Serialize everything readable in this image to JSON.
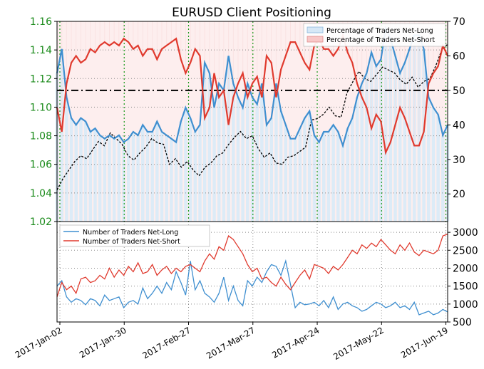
{
  "chart_data": [
    {
      "type": "line",
      "title": "EURUSD Client Positioning",
      "ylim_left": [
        1.02,
        1.16
      ],
      "left_ticks": [
        "1.02",
        "1.04",
        "1.06",
        "1.08",
        "1.10",
        "1.12",
        "1.14",
        "1.16"
      ],
      "ylim_right": [
        12,
        70
      ],
      "right_ticks": [
        "20",
        "30",
        "40",
        "50",
        "60",
        "70"
      ],
      "reference_line": 50,
      "legend_placement": "top-right",
      "grid": true,
      "series": [
        {
          "name": "Percentage of Traders Net-Long",
          "color": "#3f8fd0",
          "values": [
            55,
            62,
            48,
            42,
            40,
            42,
            41,
            38,
            39,
            37,
            36,
            37,
            36,
            37,
            35,
            36,
            38,
            37,
            40,
            38,
            38,
            41,
            38,
            37,
            36,
            35,
            41,
            45,
            42,
            38,
            40,
            58,
            55,
            45,
            52,
            50,
            60,
            52,
            48,
            45,
            52,
            48,
            46,
            52,
            40,
            42,
            52,
            44,
            40,
            36,
            36,
            39,
            42,
            44,
            37,
            35,
            38,
            38,
            40,
            38,
            34,
            39,
            42,
            48,
            52,
            55,
            61,
            57,
            59,
            68,
            65,
            60,
            55,
            58,
            62,
            66,
            66,
            62,
            48,
            45,
            43,
            37,
            40
          ]
        },
        {
          "name": "Percentage of Traders Net-Short",
          "color": "#e03a2e",
          "values": [
            45,
            38,
            52,
            58,
            60,
            58,
            59,
            62,
            61,
            63,
            64,
            63,
            64,
            63,
            65,
            64,
            62,
            63,
            60,
            62,
            62,
            59,
            62,
            63,
            64,
            65,
            59,
            55,
            58,
            62,
            60,
            42,
            45,
            55,
            48,
            50,
            40,
            48,
            52,
            55,
            48,
            52,
            54,
            48,
            60,
            58,
            48,
            56,
            60,
            64,
            64,
            61,
            58,
            56,
            63,
            65,
            62,
            62,
            60,
            62,
            66,
            61,
            58,
            52,
            48,
            45,
            39,
            43,
            41,
            32,
            35,
            40,
            45,
            42,
            38,
            34,
            34,
            38,
            52,
            55,
            57,
            63,
            60
          ]
        }
      ],
      "price_line_values": [
        1.042,
        1.05,
        1.056,
        1.062,
        1.066,
        1.064,
        1.07,
        1.076,
        1.073,
        1.082,
        1.078,
        1.074,
        1.066,
        1.063,
        1.068,
        1.072,
        1.078,
        1.075,
        1.074,
        1.06,
        1.064,
        1.058,
        1.062,
        1.056,
        1.052,
        1.058,
        1.061,
        1.066,
        1.068,
        1.074,
        1.079,
        1.083,
        1.078,
        1.08,
        1.071,
        1.065,
        1.068,
        1.061,
        1.06,
        1.065,
        1.066,
        1.069,
        1.072,
        1.091,
        1.092,
        1.095,
        1.1,
        1.094,
        1.093,
        1.11,
        1.118,
        1.125,
        1.12,
        1.118,
        1.123,
        1.128,
        1.126,
        1.124,
        1.119,
        1.116,
        1.121,
        1.114,
        1.118,
        1.12,
        1.129,
        1.14,
        1.144
      ]
    },
    {
      "type": "line",
      "ylim": [
        500,
        3300
      ],
      "ticks": [
        "500",
        "1000",
        "1500",
        "2000",
        "2500",
        "3000"
      ],
      "legend_placement": "top-left",
      "grid": true,
      "series": [
        {
          "name": "Number of Traders Net-Long",
          "color": "#3f8fd0",
          "values": [
            1500,
            1650,
            1200,
            1050,
            1150,
            1100,
            980,
            1150,
            1100,
            950,
            1250,
            1100,
            1150,
            1200,
            900,
            1050,
            1100,
            1000,
            1450,
            1150,
            1300,
            1500,
            1300,
            1600,
            1400,
            1900,
            1600,
            1250,
            2200,
            1400,
            1650,
            1300,
            1200,
            1050,
            1300,
            1750,
            1100,
            1500,
            1100,
            950,
            1650,
            1500,
            1750,
            1600,
            1900,
            2100,
            2050,
            1800,
            2200,
            1550,
            900,
            1050,
            980,
            1000,
            1050,
            950,
            1100,
            900,
            1200,
            850,
            1000,
            1050,
            950,
            900,
            800,
            850,
            950,
            1050,
            1000,
            900,
            950,
            1050,
            900,
            950,
            850,
            1050,
            700,
            750,
            800,
            700,
            750,
            850,
            780
          ]
        },
        {
          "name": "Number of Traders Net-Short",
          "color": "#e03a2e",
          "values": [
            1200,
            1600,
            1400,
            1500,
            1300,
            1700,
            1750,
            1600,
            1650,
            1800,
            1700,
            2000,
            1750,
            1950,
            1800,
            2050,
            1900,
            2150,
            1850,
            1900,
            2100,
            1800,
            1950,
            2050,
            1850,
            2000,
            1900,
            2050,
            2100,
            2000,
            1900,
            2200,
            2400,
            2250,
            2600,
            2500,
            2900,
            2800,
            2600,
            2400,
            2100,
            1900,
            2000,
            1700,
            1750,
            1600,
            1500,
            1750,
            1550,
            1400,
            1600,
            1800,
            1950,
            1700,
            2100,
            2050,
            2000,
            1850,
            2050,
            1950,
            2100,
            2300,
            2500,
            2400,
            2650,
            2550,
            2700,
            2600,
            2800,
            2650,
            2500,
            2400,
            2650,
            2500,
            2700,
            2450,
            2350,
            2500,
            2450,
            2400,
            2500,
            2900,
            2950
          ]
        }
      ],
      "x_tick_labels": [
        "2017-Jan-02",
        "2017-Jan-30",
        "2017-Feb-27",
        "2017-Mar-27",
        "2017-Apr-24",
        "2017-May-22",
        "2017-Jun-19"
      ]
    }
  ]
}
